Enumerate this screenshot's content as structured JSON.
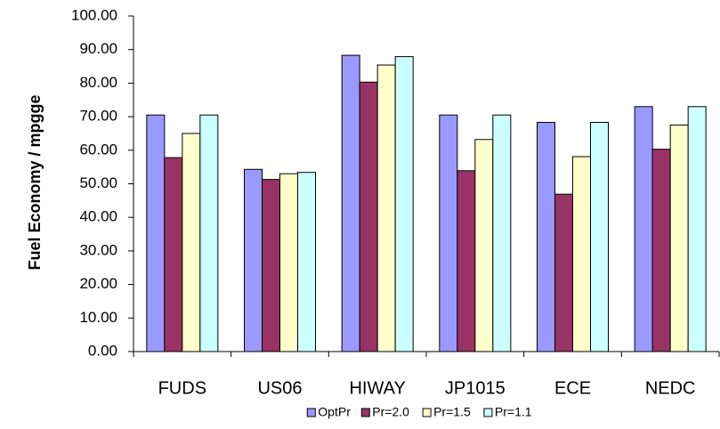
{
  "chart_data": {
    "type": "bar",
    "y_label": "Fuel Economy / mpgge",
    "categories": [
      "FUDS",
      "US06",
      "HIWAY",
      "JP1015",
      "ECE",
      "NEDC"
    ],
    "series": [
      {
        "name": "OptPr",
        "color": "#9999ff",
        "values": [
          70.5,
          54.3,
          88.3,
          70.5,
          68.3,
          73.0
        ]
      },
      {
        "name": "Pr=2.0",
        "color": "#993366",
        "values": [
          57.8,
          51.3,
          80.3,
          53.9,
          46.9,
          60.3
        ]
      },
      {
        "name": "Pr=1.5",
        "color": "#ffffcc",
        "values": [
          65.0,
          53.0,
          85.4,
          63.2,
          58.1,
          67.5
        ]
      },
      {
        "name": "Pr=1.1",
        "color": "#ccffff",
        "values": [
          70.5,
          53.4,
          87.9,
          70.5,
          68.3,
          73.0
        ]
      }
    ],
    "ylim": [
      0,
      100
    ],
    "yticks": [
      {
        "value": 0,
        "label": "0.00"
      },
      {
        "value": 10,
        "label": "10.00"
      },
      {
        "value": 20,
        "label": "20.00"
      },
      {
        "value": 30,
        "label": "30.00"
      },
      {
        "value": 40,
        "label": "40.00"
      },
      {
        "value": 50,
        "label": "50.00"
      },
      {
        "value": 60,
        "label": "60.00"
      },
      {
        "value": 70,
        "label": "70.00"
      },
      {
        "value": 80,
        "label": "80.00"
      },
      {
        "value": 90,
        "label": "90.00"
      },
      {
        "value": 100,
        "label": "100.00"
      }
    ],
    "grid": false,
    "legend": "bottom"
  }
}
